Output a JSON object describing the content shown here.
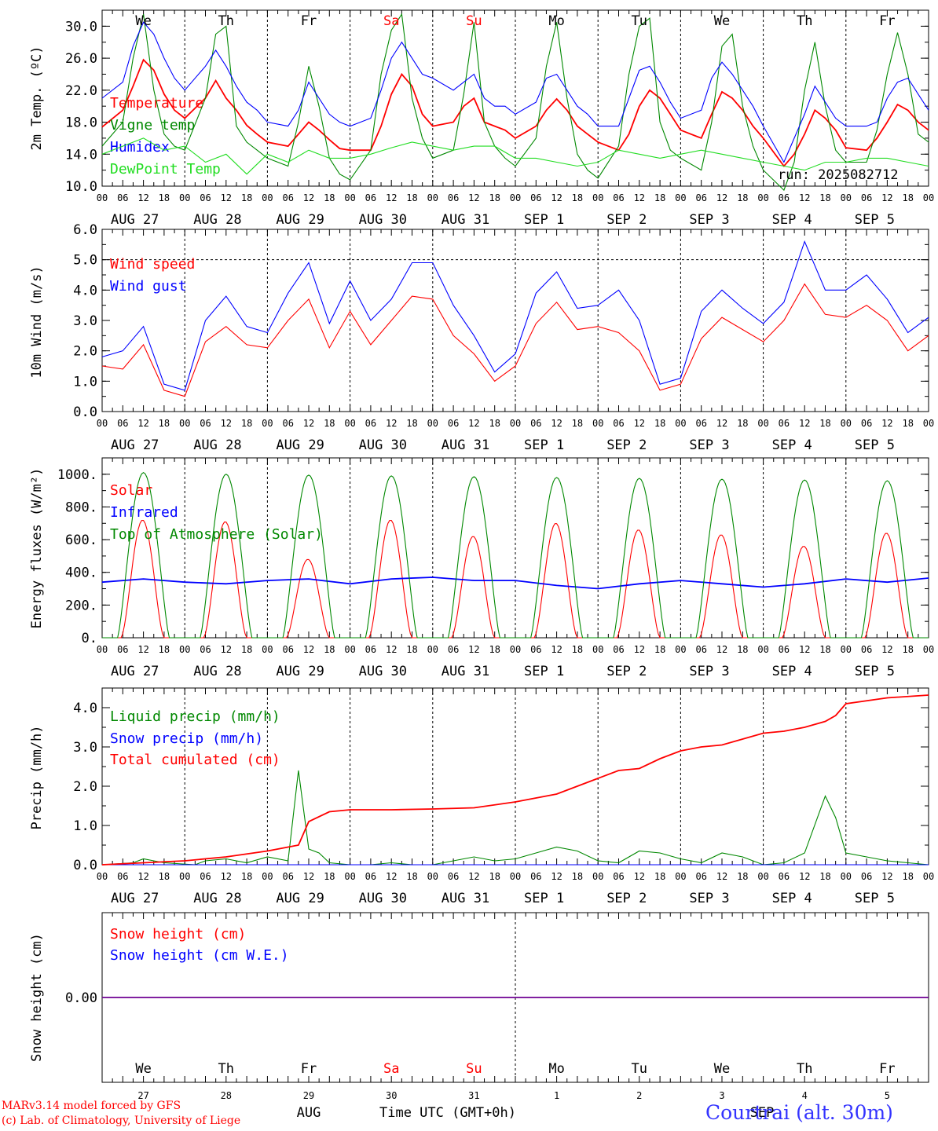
{
  "chart_data": [
    {
      "type": "line",
      "ylabel": "2m Temp. (ºC)",
      "ylim": [
        10,
        32
      ],
      "yticks": [
        "10.0",
        "14.0",
        "18.0",
        "22.0",
        "26.0",
        "30.0"
      ],
      "run_label": "run: 2025082712",
      "series": [
        {
          "name": "Temperature",
          "color": "#ff0000",
          "x_hours": [
            0,
            6,
            9,
            12,
            15,
            18,
            21,
            24,
            30,
            33,
            36,
            39,
            42,
            45,
            48,
            54,
            57,
            60,
            63,
            66,
            69,
            72,
            78,
            81,
            84,
            87,
            90,
            93,
            96,
            102,
            105,
            108,
            111,
            114,
            117,
            120,
            126,
            129,
            132,
            135,
            138,
            141,
            144,
            150,
            153,
            156,
            159,
            162,
            165,
            168,
            174,
            177,
            180,
            183,
            186,
            189,
            192,
            198,
            201,
            204,
            207,
            210,
            213,
            216,
            222,
            225,
            228,
            231,
            234,
            237,
            240
          ],
          "values": [
            17.4,
            19.5,
            22.5,
            25.8,
            24.5,
            21.5,
            19.5,
            18.5,
            21,
            23.2,
            21,
            19.5,
            17.6,
            16.5,
            15.5,
            15.0,
            16.5,
            18.0,
            17.0,
            15.8,
            14.7,
            14.5,
            14.5,
            17.5,
            21.5,
            24.0,
            22.5,
            19.0,
            17.5,
            18.0,
            20.0,
            21.0,
            18.0,
            17.5,
            17.0,
            16.0,
            17.5,
            19.5,
            20.9,
            19.5,
            17.5,
            16.5,
            15.5,
            14.5,
            16.5,
            20.0,
            22.0,
            21.0,
            19.0,
            17.0,
            16.0,
            19.0,
            21.8,
            21.0,
            19.5,
            17.5,
            16.0,
            12.5,
            14.0,
            16.5,
            19.5,
            18.5,
            17.0,
            14.8,
            14.5,
            16.0,
            18.0,
            20.2,
            19.5,
            18.0,
            17.0
          ]
        },
        {
          "name": "Vigne temp",
          "color": "#008800",
          "x_hours": [
            0,
            6,
            9,
            12,
            15,
            18,
            21,
            24,
            30,
            33,
            36,
            39,
            42,
            45,
            48,
            54,
            57,
            60,
            63,
            66,
            69,
            72,
            78,
            81,
            84,
            87,
            90,
            93,
            96,
            102,
            105,
            108,
            111,
            114,
            117,
            120,
            126,
            129,
            132,
            135,
            138,
            141,
            144,
            150,
            153,
            156,
            159,
            162,
            165,
            168,
            174,
            177,
            180,
            183,
            186,
            189,
            192,
            198,
            201,
            204,
            207,
            210,
            213,
            216,
            222,
            225,
            228,
            231,
            234,
            237,
            240
          ],
          "values": [
            15.0,
            18.0,
            26.0,
            31.5,
            22.0,
            16.5,
            15.0,
            14.5,
            21.0,
            29.0,
            30.0,
            17.5,
            15.5,
            14.5,
            13.5,
            12.5,
            18.0,
            25.0,
            20.0,
            13.5,
            11.5,
            10.8,
            14.5,
            24.0,
            29.5,
            31.5,
            21.0,
            16.0,
            13.5,
            14.5,
            21.5,
            30.5,
            18.0,
            15.0,
            13.5,
            12.5,
            16.0,
            25.0,
            30.5,
            21.0,
            14.0,
            12.0,
            11.0,
            15.0,
            24.0,
            30.0,
            31.0,
            18.0,
            14.5,
            13.5,
            12.0,
            18.0,
            27.5,
            29.0,
            20.0,
            15.0,
            12.0,
            9.5,
            13.0,
            22.0,
            28.0,
            20.0,
            14.5,
            13.0,
            13.0,
            17.0,
            24.0,
            29.2,
            24.0,
            16.5,
            15.5
          ]
        },
        {
          "name": "Humidex",
          "color": "#0000ff",
          "x_hours": [
            0,
            6,
            9,
            12,
            15,
            18,
            21,
            24,
            30,
            33,
            36,
            39,
            42,
            45,
            48,
            54,
            57,
            60,
            63,
            66,
            69,
            72,
            78,
            81,
            84,
            87,
            90,
            93,
            96,
            102,
            105,
            108,
            111,
            114,
            117,
            120,
            126,
            129,
            132,
            135,
            138,
            141,
            144,
            150,
            153,
            156,
            159,
            162,
            165,
            168,
            174,
            177,
            180,
            183,
            186,
            189,
            192,
            198,
            201,
            204,
            207,
            210,
            213,
            216,
            222,
            225,
            228,
            231,
            234,
            237,
            240
          ],
          "values": [
            21.0,
            23.0,
            27.5,
            30.5,
            29.0,
            26.0,
            23.5,
            22.0,
            25.0,
            27.0,
            25.0,
            22.5,
            20.5,
            19.5,
            18.0,
            17.5,
            19.5,
            23.0,
            21.0,
            19.0,
            18.0,
            17.5,
            18.5,
            22.0,
            26.0,
            28.0,
            26.0,
            24.0,
            23.5,
            22.0,
            23.0,
            24.0,
            21.0,
            20.0,
            20.0,
            19.0,
            20.5,
            23.5,
            24.0,
            22.0,
            20.0,
            19.0,
            17.5,
            17.5,
            21.0,
            24.5,
            25.0,
            23.0,
            20.5,
            18.5,
            19.5,
            23.5,
            25.5,
            24.0,
            22.0,
            20.0,
            17.5,
            13.0,
            16.0,
            19.0,
            22.5,
            20.5,
            18.5,
            17.5,
            17.5,
            18.0,
            21.0,
            23.0,
            23.5,
            21.5,
            19.5
          ]
        },
        {
          "name": "DewPoint Temp",
          "color": "#22dd22",
          "x_hours": [
            0,
            6,
            12,
            18,
            24,
            30,
            36,
            42,
            48,
            54,
            60,
            66,
            72,
            78,
            84,
            90,
            96,
            102,
            108,
            114,
            120,
            126,
            132,
            138,
            144,
            150,
            156,
            162,
            168,
            174,
            180,
            186,
            192,
            198,
            204,
            210,
            216,
            222,
            228,
            234,
            240
          ],
          "values": [
            14.0,
            15.0,
            16.0,
            14.5,
            15.0,
            13.0,
            14.0,
            11.5,
            14.0,
            13.0,
            14.5,
            13.5,
            13.5,
            14.0,
            14.8,
            15.5,
            15.0,
            14.5,
            15.0,
            15.0,
            13.5,
            13.5,
            13.0,
            12.5,
            13.0,
            14.5,
            14.0,
            13.5,
            14.0,
            14.5,
            14.0,
            13.5,
            13.0,
            12.5,
            12.0,
            13.0,
            13.0,
            13.5,
            13.5,
            13.0,
            12.5
          ]
        }
      ]
    },
    {
      "type": "line",
      "ylabel": "10m Wind (m/s)",
      "ylim": [
        0,
        6
      ],
      "yticks": [
        "0.0",
        "1.0",
        "2.0",
        "3.0",
        "4.0",
        "5.0",
        "6.0"
      ],
      "reference_line": 5.0,
      "series": [
        {
          "name": "Wind speed",
          "color": "#ff0000",
          "x_hours": [
            0,
            6,
            12,
            18,
            24,
            30,
            36,
            42,
            48,
            54,
            60,
            66,
            72,
            78,
            84,
            90,
            96,
            102,
            108,
            114,
            120,
            126,
            132,
            138,
            144,
            150,
            156,
            162,
            168,
            174,
            180,
            186,
            192,
            198,
            204,
            210,
            216,
            222,
            228,
            234,
            240
          ],
          "values": [
            1.5,
            1.4,
            2.2,
            0.7,
            0.5,
            2.3,
            2.8,
            2.2,
            2.1,
            3.0,
            3.7,
            2.1,
            3.3,
            2.2,
            3.0,
            3.8,
            3.7,
            2.5,
            1.9,
            1.0,
            1.5,
            2.9,
            3.6,
            2.7,
            2.8,
            2.6,
            2.0,
            0.7,
            0.9,
            2.4,
            3.1,
            2.7,
            2.3,
            3.0,
            4.2,
            3.2,
            3.1,
            3.5,
            3.0,
            2.0,
            2.5
          ]
        },
        {
          "name": "Wind gust",
          "color": "#0000ff",
          "x_hours": [
            0,
            6,
            12,
            18,
            24,
            30,
            36,
            42,
            48,
            54,
            60,
            66,
            72,
            78,
            84,
            90,
            96,
            102,
            108,
            114,
            120,
            126,
            132,
            138,
            144,
            150,
            156,
            162,
            168,
            174,
            180,
            186,
            192,
            198,
            204,
            210,
            216,
            222,
            228,
            234,
            240
          ],
          "values": [
            1.8,
            2.0,
            2.8,
            0.9,
            0.7,
            3.0,
            3.8,
            2.8,
            2.6,
            3.9,
            4.9,
            2.9,
            4.3,
            3.0,
            3.7,
            4.9,
            4.9,
            3.5,
            2.5,
            1.3,
            1.9,
            3.9,
            4.6,
            3.4,
            3.5,
            4.0,
            3.0,
            0.9,
            1.1,
            3.3,
            4.0,
            3.4,
            2.9,
            3.6,
            5.6,
            4.0,
            4.0,
            4.5,
            3.7,
            2.6,
            3.1
          ]
        }
      ]
    },
    {
      "type": "line",
      "ylabel": "Energy fluxes (W/m²)",
      "ylim": [
        0,
        1100
      ],
      "yticks": [
        "0.",
        "200.",
        "400.",
        "600.",
        "800.",
        "1000."
      ],
      "series": [
        {
          "name": "Solar",
          "color": "#ff0000",
          "day_peaks": [
            720,
            710,
            480,
            720,
            620,
            700,
            660,
            630,
            560,
            640
          ]
        },
        {
          "name": "Infrared",
          "color": "#0000ff",
          "x_hours": [
            0,
            12,
            24,
            36,
            48,
            60,
            72,
            84,
            96,
            108,
            120,
            132,
            144,
            156,
            168,
            180,
            192,
            204,
            216,
            228,
            240
          ],
          "values": [
            340,
            360,
            340,
            330,
            350,
            360,
            330,
            360,
            370,
            350,
            350,
            320,
            300,
            330,
            350,
            330,
            310,
            330,
            360,
            340,
            365
          ]
        },
        {
          "name": "Top of Atmosphere (Solar)",
          "color": "#008800",
          "day_peaks": [
            1010,
            1000,
            995,
            990,
            985,
            980,
            975,
            970,
            965,
            960
          ]
        }
      ]
    },
    {
      "type": "line",
      "ylabel": "Precip (mm/h)",
      "ylim": [
        0,
        4.5
      ],
      "yticks": [
        "0.0",
        "1.0",
        "2.0",
        "3.0",
        "4.0"
      ],
      "series": [
        {
          "name": "Liquid precip (mm/h)",
          "color": "#008800",
          "x_hours": [
            0,
            9,
            12,
            15,
            18,
            27,
            30,
            36,
            42,
            48,
            54,
            57,
            60,
            63,
            66,
            72,
            78,
            84,
            90,
            96,
            102,
            108,
            114,
            120,
            126,
            132,
            138,
            144,
            150,
            156,
            162,
            168,
            174,
            180,
            186,
            192,
            198,
            204,
            210,
            213,
            216,
            222,
            228,
            234,
            240
          ],
          "values": [
            0,
            0.05,
            0.15,
            0.1,
            0.05,
            0,
            0.1,
            0.15,
            0.05,
            0.2,
            0.1,
            2.4,
            0.4,
            0.3,
            0.05,
            0,
            0,
            0.05,
            0,
            0,
            0.1,
            0.2,
            0.1,
            0.15,
            0.3,
            0.45,
            0.35,
            0.1,
            0.05,
            0.35,
            0.3,
            0.15,
            0.05,
            0.3,
            0.2,
            0,
            0.05,
            0.3,
            1.75,
            1.2,
            0.3,
            0.2,
            0.1,
            0.05,
            0
          ]
        },
        {
          "name": "Snow precip (mm/h)",
          "color": "#0000ff",
          "x_hours": [
            0,
            240
          ],
          "values": [
            0,
            0
          ]
        },
        {
          "name": "Total cumulated (cm)",
          "color": "#ff0000",
          "x_hours": [
            0,
            12,
            24,
            36,
            48,
            54,
            57,
            60,
            66,
            72,
            84,
            96,
            108,
            120,
            126,
            132,
            138,
            144,
            150,
            156,
            162,
            168,
            174,
            180,
            186,
            192,
            198,
            204,
            210,
            213,
            216,
            228,
            240
          ],
          "values": [
            0,
            0.05,
            0.1,
            0.2,
            0.35,
            0.45,
            0.5,
            1.1,
            1.35,
            1.4,
            1.4,
            1.42,
            1.45,
            1.6,
            1.7,
            1.8,
            2.0,
            2.2,
            2.4,
            2.45,
            2.7,
            2.9,
            3.0,
            3.05,
            3.2,
            3.35,
            3.4,
            3.5,
            3.65,
            3.8,
            4.1,
            4.25,
            4.32
          ]
        }
      ]
    },
    {
      "type": "line",
      "ylabel": "Snow height (cm)",
      "yticks": [
        "0.00"
      ],
      "series": [
        {
          "name": "Snow height (cm)",
          "color": "#ff0000",
          "x_hours": [
            0,
            240
          ],
          "values": [
            0,
            0
          ]
        },
        {
          "name": "Snow height (cm W.E.)",
          "color": "#0000ff",
          "x_hours": [
            0,
            240
          ],
          "values": [
            0,
            0
          ]
        }
      ]
    }
  ],
  "x_axis": {
    "hour_ticks": [
      "00",
      "06",
      "12",
      "18"
    ],
    "end_tick": "00",
    "date_labels": [
      "AUG 27",
      "AUG 28",
      "AUG 29",
      "AUG 30",
      "AUG 31",
      "SEP  1",
      "SEP  2",
      "SEP  3",
      "SEP  4",
      "SEP  5"
    ],
    "weekdays": [
      "We",
      "Th",
      "Fr",
      "Sa",
      "Su",
      "Mo",
      "Tu",
      "We",
      "Th",
      "Fr"
    ],
    "weekday_colors": [
      "#000000",
      "#000000",
      "#000000",
      "#ff0000",
      "#ff0000",
      "#000000",
      "#000000",
      "#000000",
      "#000000",
      "#000000"
    ],
    "day_numbers": [
      "27",
      "28",
      "29",
      "30",
      "31",
      "1",
      "2",
      "3",
      "4",
      "5"
    ],
    "month_labels": [
      "AUG",
      "SEP"
    ],
    "title": "Time UTC (GMT+0h)"
  },
  "footer": {
    "credit_line1": "MARv3.14 model forced by GFS",
    "credit_line2": "(c) Lab. of Climatology, University of Liege",
    "location": "Courtrai (alt. 30m)"
  }
}
